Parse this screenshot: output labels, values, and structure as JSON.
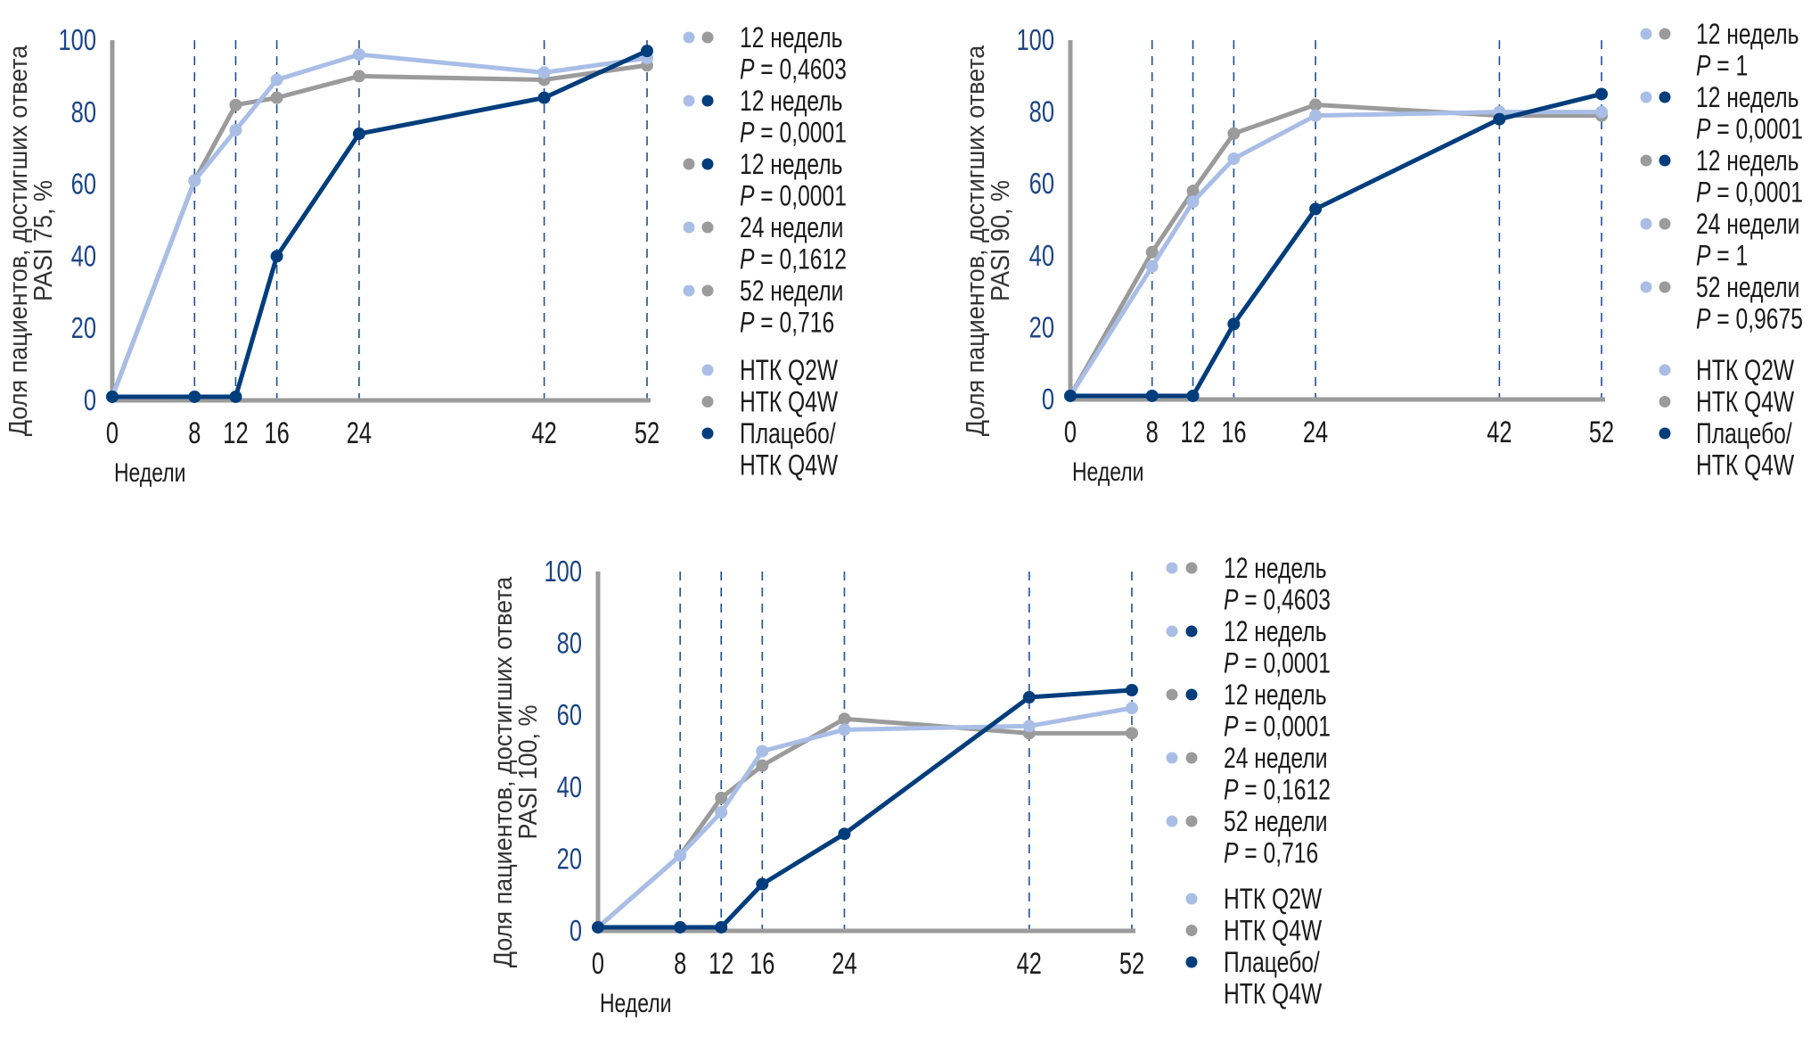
{
  "colors": {
    "q2w": "#a9bee6",
    "q4w": "#9b9b9b",
    "placebo": "#003d7c",
    "axis": "#9b9b9b",
    "gridline": "#1f4f95",
    "tick_y": "#1b4585"
  },
  "series_legend": [
    {
      "key": "q2w",
      "label": "НТК Q2W"
    },
    {
      "key": "q4w",
      "label": "НТК Q4W"
    },
    {
      "key": "placebo",
      "label": "Плацебо/",
      "label2": "НТК Q4W"
    }
  ],
  "chart_data": [
    {
      "type": "line",
      "title": "",
      "xlabel": "Недели",
      "ylabel": "Доля пациентов, достигших ответа",
      "ylabel2": "PASI 75, %",
      "x": [
        0,
        8,
        12,
        16,
        24,
        42,
        52
      ],
      "xticks": [
        "0",
        "8",
        "12",
        "16",
        "24",
        "42",
        "52"
      ],
      "yticks": [
        "0",
        "20",
        "40",
        "60",
        "80",
        "100"
      ],
      "ylim": [
        0,
        100
      ],
      "xlim": [
        0,
        52
      ],
      "grid": "vertical dashed at each x",
      "legend_position": "right",
      "series": [
        {
          "key": "q2w",
          "name": "НТК Q2W",
          "values": [
            1,
            61,
            75,
            89,
            96,
            91,
            95
          ]
        },
        {
          "key": "q4w",
          "name": "НТК Q4W",
          "values": [
            1,
            61,
            82,
            84,
            90,
            89,
            93
          ]
        },
        {
          "key": "placebo",
          "name": "Плацебо/НТК Q4W",
          "values": [
            1,
            1,
            1,
            40,
            74,
            84,
            97
          ]
        }
      ],
      "comparisons": [
        {
          "dots": [
            "q2w",
            "q4w"
          ],
          "label": "12 недель",
          "p_prefix": "P",
          "p_value": " = 0,4603"
        },
        {
          "dots": [
            "q2w",
            "placebo"
          ],
          "label": "12 недель",
          "p_prefix": "P",
          "p_value": " = 0,0001"
        },
        {
          "dots": [
            "q4w",
            "placebo"
          ],
          "label": "12 недель",
          "p_prefix": "P",
          "p_value": " = 0,0001"
        },
        {
          "dots": [
            "q2w",
            "q4w"
          ],
          "label": "24 недели",
          "p_prefix": "P",
          "p_value": " = 0,1612"
        },
        {
          "dots": [
            "q2w",
            "q4w"
          ],
          "label": "52 недели",
          "p_prefix": "P",
          "p_value": " = 0,716"
        }
      ]
    },
    {
      "type": "line",
      "title": "",
      "xlabel": "Недели",
      "ylabel": "Доля пациентов, достигших ответа",
      "ylabel2": "PASI 90, %",
      "x": [
        0,
        8,
        12,
        16,
        24,
        42,
        52
      ],
      "xticks": [
        "0",
        "8",
        "12",
        "16",
        "24",
        "42",
        "52"
      ],
      "yticks": [
        "0",
        "20",
        "40",
        "60",
        "80",
        "100"
      ],
      "ylim": [
        0,
        100
      ],
      "xlim": [
        0,
        52
      ],
      "grid": "vertical dashed at each x",
      "legend_position": "right",
      "series": [
        {
          "key": "q2w",
          "name": "НТК Q2W",
          "values": [
            1,
            37,
            55,
            67,
            79,
            80,
            80
          ]
        },
        {
          "key": "q4w",
          "name": "НТК Q4W",
          "values": [
            1,
            41,
            58,
            74,
            82,
            79,
            79
          ]
        },
        {
          "key": "placebo",
          "name": "Плацебо/НТК Q4W",
          "values": [
            1,
            1,
            1,
            21,
            53,
            78,
            85
          ]
        }
      ],
      "comparisons": [
        {
          "dots": [
            "q2w",
            "q4w"
          ],
          "label": "12 недель",
          "p_prefix": "P",
          "p_value": " = 1"
        },
        {
          "dots": [
            "q2w",
            "placebo"
          ],
          "label": "12 недель",
          "p_prefix": "P",
          "p_value": " = 0,0001"
        },
        {
          "dots": [
            "q4w",
            "placebo"
          ],
          "label": "12 недель",
          "p_prefix": "P",
          "p_value": " = 0,0001"
        },
        {
          "dots": [
            "q2w",
            "q4w"
          ],
          "label": "24 недели",
          "p_prefix": "P",
          "p_value": " = 1"
        },
        {
          "dots": [
            "q2w",
            "q4w"
          ],
          "label": "52 недели",
          "p_prefix": "P",
          "p_value": " = 0,9675"
        }
      ]
    },
    {
      "type": "line",
      "title": "",
      "xlabel": "Недели",
      "ylabel": "Доля пациентов, достигших ответа",
      "ylabel2": "PASI 100, %",
      "x": [
        0,
        8,
        12,
        16,
        24,
        42,
        52
      ],
      "xticks": [
        "0",
        "8",
        "12",
        "16",
        "24",
        "42",
        "52"
      ],
      "yticks": [
        "0",
        "20",
        "40",
        "60",
        "80",
        "100"
      ],
      "ylim": [
        0,
        100
      ],
      "xlim": [
        0,
        52
      ],
      "grid": "vertical dashed at each x",
      "legend_position": "right",
      "series": [
        {
          "key": "q2w",
          "name": "НТК Q2W",
          "values": [
            1,
            21,
            33,
            50,
            56,
            57,
            62
          ]
        },
        {
          "key": "q4w",
          "name": "НТК Q4W",
          "values": [
            1,
            21,
            37,
            46,
            59,
            55,
            55
          ]
        },
        {
          "key": "placebo",
          "name": "Плацебо/НТК Q4W",
          "values": [
            1,
            1,
            1,
            13,
            27,
            65,
            67
          ]
        }
      ],
      "comparisons": [
        {
          "dots": [
            "q2w",
            "q4w"
          ],
          "label": "12 недель",
          "p_prefix": "P",
          "p_value": " = 0,4603"
        },
        {
          "dots": [
            "q2w",
            "placebo"
          ],
          "label": "12 недель",
          "p_prefix": "P",
          "p_value": " = 0,0001"
        },
        {
          "dots": [
            "q4w",
            "placebo"
          ],
          "label": "12 недель",
          "p_prefix": "P",
          "p_value": " = 0,0001"
        },
        {
          "dots": [
            "q2w",
            "q4w"
          ],
          "label": "24 недели",
          "p_prefix": "P",
          "p_value": " = 0,1612"
        },
        {
          "dots": [
            "q2w",
            "q4w"
          ],
          "label": "52 недели",
          "p_prefix": "P",
          "p_value": " = 0,716"
        }
      ]
    }
  ]
}
